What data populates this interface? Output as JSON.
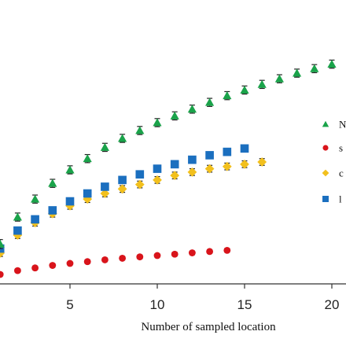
{
  "chart_data": {
    "type": "scatter",
    "xlabel": "Number of sampled location",
    "ylabel": "",
    "xlim": [
      0.2,
      21.0
    ],
    "ylim": [
      0,
      100
    ],
    "xticks": [
      5,
      10,
      15,
      20
    ],
    "tick_labels": [
      "5",
      "10",
      "15",
      "20"
    ],
    "grid": false,
    "legend_position": "right",
    "error_bars": true,
    "series": [
      {
        "name": "N",
        "marker": "triangle",
        "color": "#1aa34a",
        "x": [
          1,
          2,
          3,
          4,
          5,
          6,
          7,
          8,
          9,
          10,
          11,
          12,
          13,
          14,
          15,
          16,
          17,
          18,
          19,
          20
        ],
        "y": [
          17,
          29,
          37,
          44,
          50,
          55,
          60,
          64,
          67.5,
          71,
          74,
          77,
          80,
          83,
          85.5,
          88,
          90.5,
          93,
          95,
          97
        ],
        "err": [
          2,
          1.8,
          1.8,
          1.8,
          1.8,
          1.8,
          1.8,
          1.8,
          1.8,
          1.8,
          1.8,
          1.8,
          1.8,
          1.8,
          1.8,
          1.8,
          1.8,
          1.8,
          1.8,
          1.8
        ]
      },
      {
        "name": "s",
        "marker": "circle",
        "color": "#d9141b",
        "x": [
          1,
          2,
          3,
          4,
          5,
          6,
          7,
          8,
          9,
          10,
          11,
          12,
          13,
          14
        ],
        "y": [
          3.5,
          5.2,
          6.4,
          7.5,
          8.4,
          9.2,
          10.0,
          10.7,
          11.3,
          11.9,
          12.5,
          13.1,
          13.7,
          14.2
        ],
        "err": [
          0.8,
          0.8,
          0.8,
          0.8,
          0.8,
          0.8,
          0.8,
          0.8,
          0.8,
          0.8,
          0.8,
          0.8,
          0.8,
          0.8
        ]
      },
      {
        "name": "c",
        "marker": "diamond",
        "color": "#f2c01d",
        "x": [
          1,
          2,
          3,
          4,
          5,
          6,
          7,
          8,
          9,
          10,
          11,
          12,
          13,
          14,
          15,
          16
        ],
        "y": [
          13,
          21,
          26.5,
          30.5,
          34,
          37,
          39.5,
          41.5,
          43.5,
          45.5,
          47.5,
          49,
          50.5,
          51.5,
          52.5,
          53.5
        ],
        "err": [
          1.5,
          1.5,
          1.5,
          1.5,
          1.5,
          1.5,
          1.5,
          1.5,
          1.5,
          1.5,
          1.5,
          1.5,
          1.5,
          1.5,
          1.5,
          1.5
        ]
      },
      {
        "name": "l",
        "marker": "square",
        "color": "#1b6fbf",
        "x": [
          1,
          2,
          3,
          4,
          5,
          6,
          7,
          8,
          9,
          10,
          11,
          12,
          13,
          14,
          15
        ],
        "y": [
          15,
          23,
          28,
          32,
          36,
          39.5,
          42.5,
          45.5,
          48,
          50.5,
          52.5,
          54.5,
          56.5,
          58,
          59.5
        ],
        "err": [
          1.5,
          1.5,
          1.5,
          1.5,
          1.5,
          1.5,
          1.5,
          1.5,
          1.5,
          1.5,
          1.5,
          1.5,
          1.5,
          1.5,
          1.5
        ]
      }
    ]
  }
}
